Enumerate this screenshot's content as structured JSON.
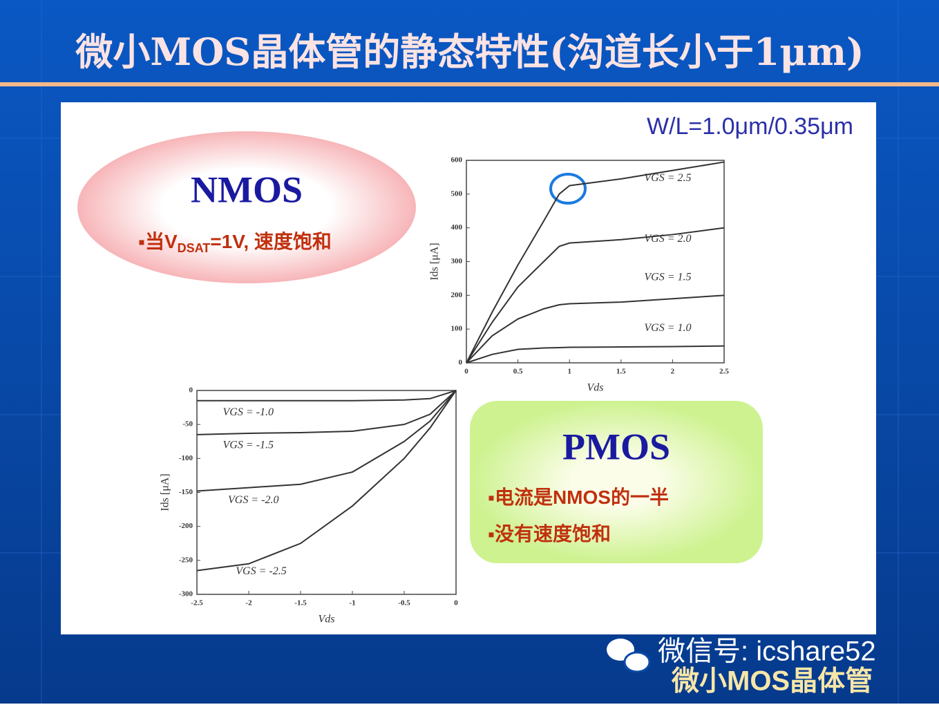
{
  "slide": {
    "title": "微小MOS晶体管的静态特性(沟道长小于1μm)",
    "ratio": "W/L=1.0μm/0.35μm",
    "nmos_box": {
      "heading": "NMOS",
      "bullet": {
        "pre": "当V",
        "sub": "DSAT",
        "post": "=1V, 速度饱和"
      }
    },
    "pmos_box": {
      "heading": "PMOS",
      "bullets": [
        "电流是NMOS的一半",
        "没有速度饱和"
      ]
    },
    "watermark": [
      "微信号: icshare52",
      "微小MOS晶体管"
    ]
  },
  "chart_data": [
    {
      "type": "line",
      "x_label": "Vds",
      "y_label": "Ids [μA]",
      "x": [
        0,
        0.25,
        0.5,
        0.75,
        0.9,
        1.0,
        1.5,
        2.0,
        2.5
      ],
      "series": [
        {
          "name": "VGS = 2.5",
          "color": "#333333",
          "values": [
            0,
            150,
            290,
            420,
            500,
            525,
            545,
            570,
            595
          ]
        },
        {
          "name": "VGS = 2.0",
          "color": "#333333",
          "values": [
            0,
            120,
            225,
            300,
            345,
            355,
            365,
            380,
            400
          ]
        },
        {
          "name": "VGS = 1.5",
          "color": "#333333",
          "values": [
            0,
            80,
            130,
            160,
            172,
            175,
            180,
            190,
            200
          ]
        },
        {
          "name": "VGS = 1.0",
          "color": "#333333",
          "values": [
            0,
            25,
            40,
            44,
            45,
            46,
            47,
            48,
            50
          ]
        }
      ],
      "xlim": [
        0,
        2.5
      ],
      "xticks": [
        0,
        0.5,
        1,
        1.5,
        2,
        2.5
      ],
      "ylim": [
        0,
        600
      ],
      "yticks": [
        0,
        100,
        200,
        300,
        400,
        500,
        600
      ]
    },
    {
      "type": "line",
      "x_label": "Vds",
      "y_label": "Ids [μA]",
      "x": [
        -2.5,
        -2,
        -1.5,
        -1,
        -0.5,
        -0.25,
        0
      ],
      "series": [
        {
          "name": "VGS = -1.0",
          "color": "#333333",
          "values": [
            -15,
            -15,
            -15,
            -15,
            -14,
            -12,
            0
          ]
        },
        {
          "name": "VGS = -1.5",
          "color": "#333333",
          "values": [
            -65,
            -63,
            -62,
            -60,
            -50,
            -35,
            0
          ]
        },
        {
          "name": "VGS = -2.0",
          "color": "#333333",
          "values": [
            -148,
            -143,
            -138,
            -120,
            -75,
            -45,
            0
          ]
        },
        {
          "name": "VGS = -2.5",
          "color": "#333333",
          "values": [
            -265,
            -255,
            -225,
            -170,
            -100,
            -55,
            0
          ]
        }
      ],
      "xlim": [
        -2.5,
        0
      ],
      "xticks": [
        -2.5,
        -2,
        -1.5,
        -1,
        -0.5,
        0
      ],
      "ylim": [
        -300,
        0
      ],
      "yticks": [
        -300,
        -250,
        -200,
        -150,
        -100,
        -50,
        0
      ]
    }
  ]
}
